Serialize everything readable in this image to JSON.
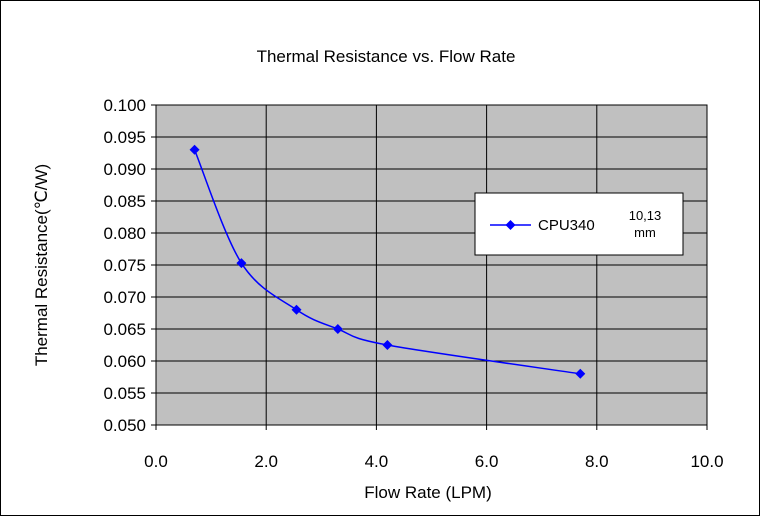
{
  "chart_data": {
    "type": "scatter",
    "title": "Thermal Resistance vs. Flow Rate",
    "xlabel": "Flow Rate (LPM)",
    "ylabel": "Thermal Resistance(℃/W)",
    "xlim": [
      0,
      10
    ],
    "ylim": [
      0.05,
      0.1
    ],
    "x_ticks": [
      "0.0",
      "2.0",
      "4.0",
      "6.0",
      "8.0",
      "10.0"
    ],
    "y_ticks": [
      "0.100",
      "0.095",
      "0.090",
      "0.085",
      "0.080",
      "0.075",
      "0.070",
      "0.065",
      "0.060",
      "0.055",
      "0.050"
    ],
    "grid": true,
    "legend_position": "right",
    "series": [
      {
        "name": "CPU340",
        "name_note": [
          "10,13",
          "mm"
        ],
        "color": "#0000ff",
        "marker": "diamond",
        "line": "smooth",
        "x": [
          0.7,
          1.55,
          2.55,
          3.3,
          4.2,
          7.7
        ],
        "y": [
          0.093,
          0.0753,
          0.068,
          0.065,
          0.0625,
          0.058
        ]
      }
    ],
    "plot_background": "#c0c0c0",
    "grid_color": "#000000"
  }
}
